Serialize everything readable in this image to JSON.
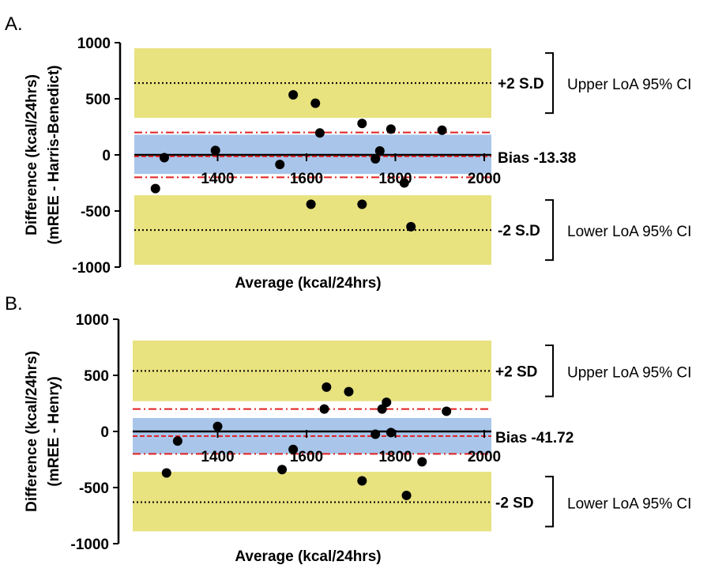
{
  "chart_data": [
    {
      "panel_label": "A.",
      "type": "scatter",
      "xlabel": "Average (kcal/24hrs)",
      "ylabel_line1": "Difference (kcal/24hrs)",
      "ylabel_line2": "(mREE - Harris-Benedict)",
      "xlim": [
        1200,
        2000
      ],
      "ylim": [
        -1000,
        1000
      ],
      "xticks": [
        1400,
        1600,
        1800,
        2000
      ],
      "yticks": [
        1000,
        500,
        0,
        -500,
        -1000
      ],
      "bias": -13.38,
      "bias_label": "Bias -13.38",
      "bias_ci": [
        -170,
        180
      ],
      "upper_loa": 640,
      "upper_loa_label": "+2 S.D",
      "upper_loa_ci": [
        330,
        950
      ],
      "lower_loa": -670,
      "lower_loa_label": "-2 S.D",
      "lower_loa_ci": [
        -980,
        -360
      ],
      "ci_lines": [
        200,
        -200
      ],
      "upper_ci_label": "Upper LoA 95% CI",
      "lower_ci_label": "Lower LoA 95% CI",
      "points": [
        {
          "x": 1260,
          "y": -300
        },
        {
          "x": 1280,
          "y": -25
        },
        {
          "x": 1395,
          "y": 40
        },
        {
          "x": 1540,
          "y": -85
        },
        {
          "x": 1570,
          "y": 535
        },
        {
          "x": 1610,
          "y": -440
        },
        {
          "x": 1620,
          "y": 460
        },
        {
          "x": 1630,
          "y": 195
        },
        {
          "x": 1725,
          "y": 280
        },
        {
          "x": 1725,
          "y": -440
        },
        {
          "x": 1755,
          "y": -35
        },
        {
          "x": 1765,
          "y": 35
        },
        {
          "x": 1790,
          "y": 230
        },
        {
          "x": 1820,
          "y": -250
        },
        {
          "x": 1835,
          "y": -640
        },
        {
          "x": 1905,
          "y": 220
        }
      ]
    },
    {
      "panel_label": "B.",
      "type": "scatter",
      "xlabel": "Average (kcal/24hrs)",
      "ylabel_line1": "Difference (kcal/24hrs)",
      "ylabel_line2": "(mREE - Henry)",
      "xlim": [
        1200,
        2000
      ],
      "ylim": [
        -1000,
        1000
      ],
      "xticks": [
        1400,
        1600,
        1800,
        2000
      ],
      "yticks": [
        1000,
        500,
        0,
        -500,
        -1000
      ],
      "bias": -41.72,
      "bias_label": "Bias -41.72",
      "bias_ci": [
        -200,
        120
      ],
      "upper_loa": 540,
      "upper_loa_label": "+2 SD",
      "upper_loa_ci": [
        270,
        810
      ],
      "lower_loa": -630,
      "lower_loa_label": "-2 SD",
      "lower_loa_ci": [
        -890,
        -360
      ],
      "ci_lines": [
        200,
        -200
      ],
      "upper_ci_label": "Upper LoA 95% CI",
      "lower_ci_label": "Lower LoA 95% CI",
      "points": [
        {
          "x": 1285,
          "y": -370
        },
        {
          "x": 1310,
          "y": -85
        },
        {
          "x": 1400,
          "y": 45
        },
        {
          "x": 1545,
          "y": -340
        },
        {
          "x": 1570,
          "y": -160
        },
        {
          "x": 1640,
          "y": 200
        },
        {
          "x": 1645,
          "y": 395
        },
        {
          "x": 1695,
          "y": 355
        },
        {
          "x": 1725,
          "y": -440
        },
        {
          "x": 1755,
          "y": -25
        },
        {
          "x": 1770,
          "y": 200
        },
        {
          "x": 1780,
          "y": 260
        },
        {
          "x": 1790,
          "y": -10
        },
        {
          "x": 1825,
          "y": -570
        },
        {
          "x": 1860,
          "y": -270
        },
        {
          "x": 1915,
          "y": 180
        }
      ]
    }
  ],
  "colors": {
    "loa_band": "#e8e27f",
    "bias_band": "#a9c6ea",
    "ci_line": "#e02020",
    "dots": "#000000",
    "axis": "#000000"
  }
}
